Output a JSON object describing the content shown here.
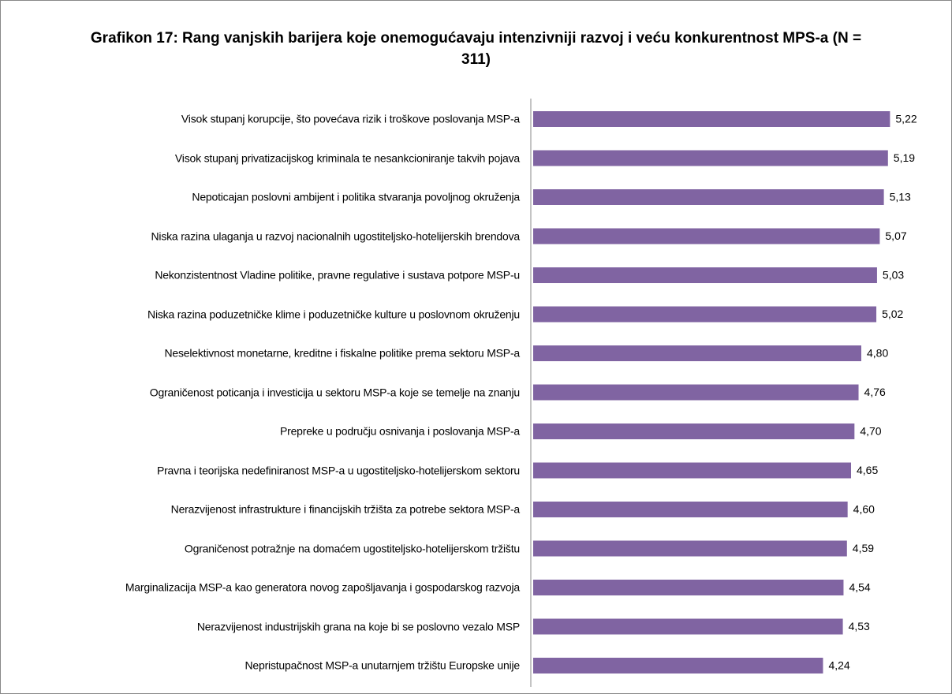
{
  "chart_data": {
    "type": "bar",
    "orientation": "horizontal",
    "title": "Grafikon 17: Rang vanjskih barijera koje onemogućavaju intenzivniji razvoj i veću konkurentnost MPS-a (N = 311)",
    "categories": [
      "Visok stupanj korupcije, što povećava rizik i troškove poslovanja MSP-a",
      "Visok stupanj privatizacijskog kriminala te nesankcioniranje takvih pojava",
      "Nepoticajan poslovni ambijent i politika stvaranja povoljnog okruženja",
      "Niska razina ulaganja u razvoj nacionalnih ugostiteljsko-hotelijerskih brendova",
      "Nekonzistentnost Vladine politike, pravne regulative i sustava potpore MSP-u",
      "Niska razina poduzetničke klime i poduzetničke kulture u poslovnom okruženju",
      "Neselektivnost monetarne, kreditne i fiskalne politike prema sektoru MSP-a",
      "Ograničenost poticanja i investicija u sektoru MSP-a koje se temelje na znanju",
      "Prepreke u području osnivanja i poslovanja MSP-a",
      "Pravna i teorijska nedefiniranost MSP-a u ugostiteljsko-hotelijerskom sektoru",
      "Nerazvijenost infrastrukture i financijskih tržišta za potrebe sektora MSP-a",
      "Ograničenost potražnje na domaćem ugostiteljsko-hotelijerskom tržištu",
      "Marginalizacija MSP-a kao generatora novog zapošljavanja i gospodarskog razvoja",
      "Nerazvijenost industrijskih grana na koje bi se poslovno vezalo MSP",
      "Nepristupačnost MSP-a unutarnjem tržištu Europske unije"
    ],
    "values": [
      5.22,
      5.19,
      5.13,
      5.07,
      5.03,
      5.02,
      4.8,
      4.76,
      4.7,
      4.65,
      4.6,
      4.59,
      4.54,
      4.53,
      4.24
    ],
    "value_labels": [
      "5,22",
      "5,19",
      "5,13",
      "5,07",
      "5,03",
      "5,02",
      "4,80",
      "4,76",
      "4,70",
      "4,65",
      "4,60",
      "4,59",
      "4,54",
      "4,53",
      "4,24"
    ],
    "color": "#8064a2",
    "xlim": [
      0,
      6
    ]
  }
}
